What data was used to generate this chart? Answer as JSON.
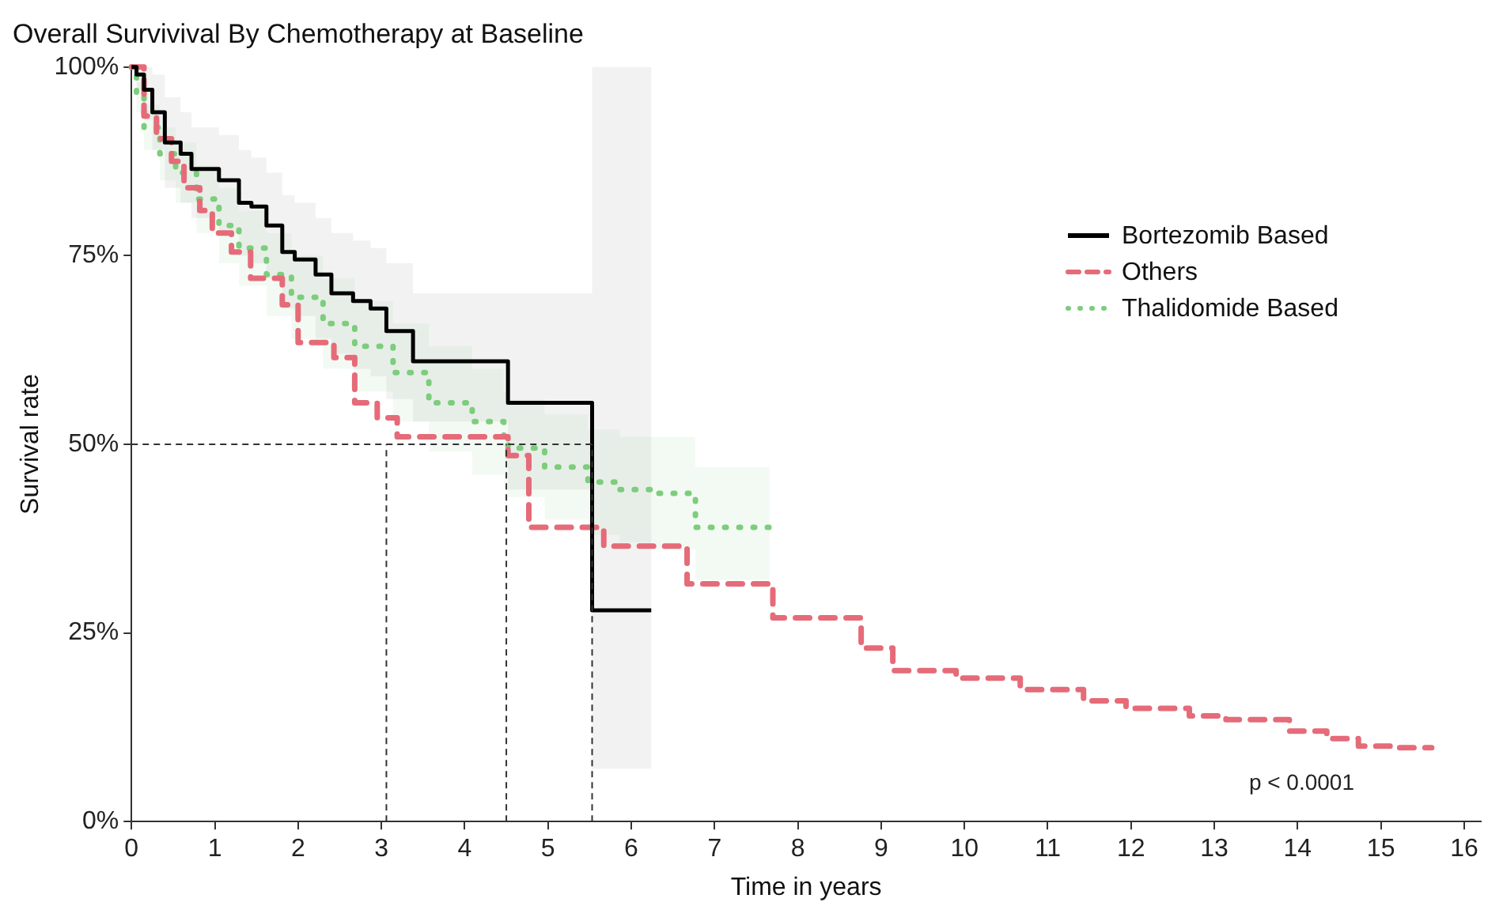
{
  "chart_data": {
    "type": "step",
    "title": "Overall Survivival By Chemotherapy at Baseline",
    "xlabel": "Time in years",
    "ylabel": "Survival rate",
    "xlim": [
      0,
      16.2
    ],
    "xticks": [
      0,
      1,
      2,
      3,
      4,
      5,
      6,
      7,
      8,
      9,
      10,
      11,
      12,
      13,
      14,
      15,
      16
    ],
    "ylim": [
      0,
      100
    ],
    "yticks": [
      {
        "value": 0,
        "label": "0%"
      },
      {
        "value": 25,
        "label": "25%"
      },
      {
        "value": 50,
        "label": "50%"
      },
      {
        "value": 75,
        "label": "75%"
      },
      {
        "value": 100,
        "label": "100%"
      }
    ],
    "grid": false,
    "legend": "right",
    "series": [
      {
        "name": "Bortezomib Based",
        "color": "#000000",
        "line_style": "solid",
        "x": [
          0,
          0.06,
          0.15,
          0.25,
          0.4,
          0.59,
          0.72,
          1.05,
          1.29,
          1.44,
          1.62,
          1.81,
          1.96,
          2.21,
          2.4,
          2.66,
          2.87,
          3.06,
          3.38,
          4.52,
          5.53,
          6.24
        ],
        "values": [
          100,
          99,
          97,
          94,
          90,
          88.5,
          86.5,
          85,
          82,
          81.5,
          79,
          75.5,
          74.5,
          72.5,
          70,
          69,
          68,
          65,
          61,
          55.5,
          28,
          28
        ],
        "upper": [
          100,
          100,
          100,
          99,
          96,
          94,
          92,
          91,
          89,
          88,
          86,
          83,
          82,
          80,
          78,
          77,
          76,
          74,
          70,
          70,
          100,
          100
        ],
        "lower": [
          100,
          97,
          93,
          89,
          84,
          82,
          80,
          78,
          75,
          74,
          72,
          68,
          67,
          64,
          62,
          60,
          59,
          56,
          53,
          44,
          7,
          7
        ]
      },
      {
        "name": "Others",
        "color": "#e56b79",
        "line_style": "dashed",
        "x": [
          0,
          0.15,
          0.3,
          0.48,
          0.63,
          0.82,
          0.97,
          1.2,
          1.43,
          1.81,
          2,
          2.43,
          2.68,
          2.95,
          3.19,
          4.52,
          4.77,
          5.67,
          6.67,
          7.7,
          8.76,
          9.14,
          9.9,
          10.67,
          11.43,
          11.94,
          12.7,
          13.14,
          13.9,
          14.35,
          14.73,
          15.11,
          15.61
        ],
        "values": [
          100,
          93.5,
          90.5,
          87.5,
          84,
          81,
          78,
          75.5,
          72,
          68.5,
          63.5,
          61.5,
          55.5,
          53.5,
          51,
          48.5,
          39,
          36.5,
          31.5,
          27,
          23,
          20,
          19,
          17.5,
          16,
          15,
          14,
          13.5,
          12,
          11,
          10,
          9.8,
          9.8
        ]
      },
      {
        "name": "Thalidomide Based",
        "color": "#7ccd7c",
        "line_style": "dotted",
        "x": [
          0,
          0.06,
          0.15,
          0.34,
          0.53,
          0.78,
          1.05,
          1.29,
          1.62,
          1.92,
          2.3,
          2.68,
          3.14,
          3.57,
          4.09,
          4.47,
          4.52,
          4.96,
          5.48,
          5.86,
          6.29,
          6.77,
          7.66
        ],
        "values": [
          100,
          96,
          92,
          88.5,
          86,
          82.5,
          79,
          76,
          72.5,
          69.5,
          66,
          63,
          59.5,
          55.5,
          53,
          50.5,
          49.5,
          47,
          45,
          44,
          43.5,
          39,
          39
        ],
        "upper": [
          100,
          98,
          95,
          92,
          90,
          87,
          84,
          81,
          78,
          75,
          72,
          69,
          66,
          63,
          60,
          57,
          56,
          54,
          52,
          51,
          51,
          47,
          47
        ],
        "lower": [
          100,
          94,
          89,
          85,
          82,
          78,
          74,
          71,
          67,
          64,
          60,
          57,
          53,
          49,
          46,
          44,
          43,
          40,
          38,
          37,
          36,
          32,
          32
        ]
      }
    ],
    "ref_lines": [
      {
        "axis": "y",
        "value": 50,
        "line_style": "dashed",
        "color": "#333333"
      },
      {
        "axis": "x",
        "value": 3.06,
        "line_style": "dashed",
        "color": "#333333"
      },
      {
        "axis": "x",
        "value": 4.5,
        "line_style": "dashed",
        "color": "#333333"
      },
      {
        "axis": "x",
        "value": 5.53,
        "line_style": "dashed",
        "color": "#333333"
      }
    ],
    "annotations": [
      "p < 0.0001"
    ]
  }
}
